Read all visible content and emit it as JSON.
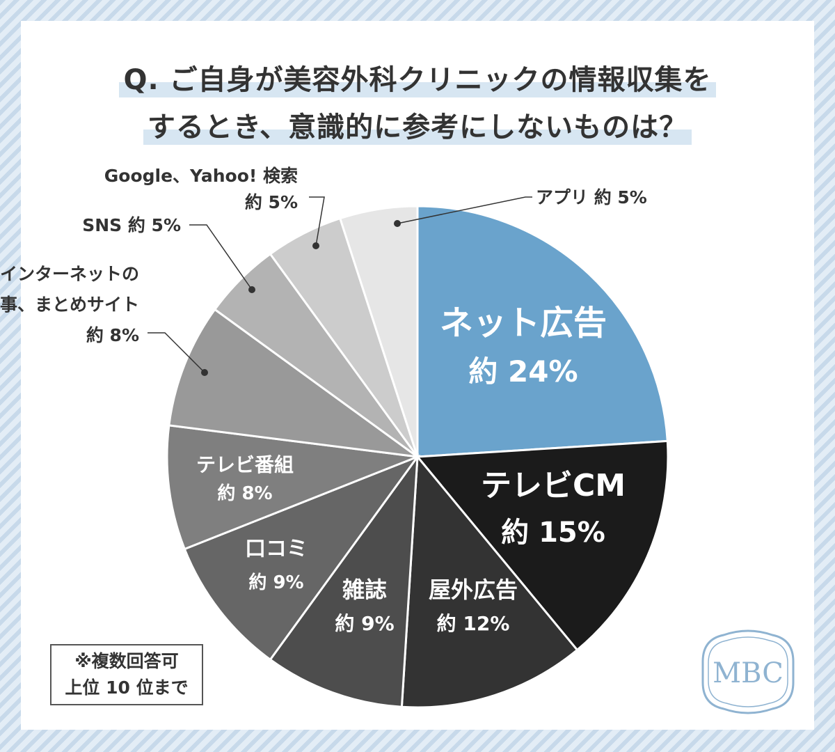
{
  "title": {
    "line1": "Q. ご自身が美容外科クリニックの情報収集を",
    "line2": "するとき、意識的に参考にしないものは？"
  },
  "note": {
    "line1": "※複数回答可",
    "line2": "上位 10 位まで"
  },
  "logo": {
    "text": "MBC",
    "color": "#8fb3d1"
  },
  "chart_data": {
    "type": "pie",
    "title": "Q. ご自身が美容外科クリニックの情報収集をするとき、意識的に参考にしないものは？",
    "slices": [
      {
        "label": "ネット広告",
        "value": 24,
        "value_label": "約 24%",
        "color": "#6aa3cc",
        "text_color": "#ffffff"
      },
      {
        "label": "テレビCM",
        "value": 15,
        "value_label": "約 15%",
        "color": "#1b1b1b",
        "text_color": "#ffffff"
      },
      {
        "label": "屋外広告",
        "value": 12,
        "value_label": "約 12%",
        "color": "#333333",
        "text_color": "#ffffff"
      },
      {
        "label": "雑誌",
        "value": 9,
        "value_label": "約 9%",
        "color": "#4d4d4d",
        "text_color": "#ffffff"
      },
      {
        "label": "口コミ",
        "value": 9,
        "value_label": "約 9%",
        "color": "#666666",
        "text_color": "#ffffff"
      },
      {
        "label": "テレビ番組",
        "value": 8,
        "value_label": "約 8%",
        "color": "#7f7f7f",
        "text_color": "#ffffff"
      },
      {
        "label": "インターネットの\n記事、まとめサイト",
        "value": 8,
        "value_label": "約 8%",
        "color": "#999999",
        "text_color": "#333333"
      },
      {
        "label": "SNS",
        "value": 5,
        "value_label": "約 5%",
        "color": "#b3b3b3",
        "text_color": "#333333"
      },
      {
        "label": "Google、Yahoo! 検索",
        "value": 5,
        "value_label": "約 5%",
        "color": "#cccccc",
        "text_color": "#333333"
      },
      {
        "label": "アプリ",
        "value": 5,
        "value_label": "約 5%",
        "color": "#e6e6e6",
        "text_color": "#333333"
      }
    ]
  }
}
